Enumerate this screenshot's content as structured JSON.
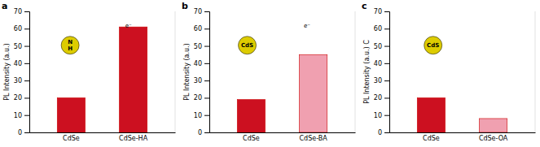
{
  "chart_data": [
    {
      "type": "bar",
      "title": "a",
      "ylabel": "PL Intensity (a.u.)",
      "categories": [
        "CdSe",
        "CdSe-HA"
      ],
      "values": [
        20,
        61
      ],
      "colors": [
        "#cc1020",
        "#cc1020"
      ],
      "ylim": [
        0,
        70
      ],
      "yticks": [
        0,
        10,
        20,
        30,
        40,
        50,
        60,
        70
      ],
      "annotations": [
        "N\nH",
        "e⁻"
      ]
    },
    {
      "type": "bar",
      "title": "b",
      "ylabel": "PL Intensity (a.u.)",
      "categories": [
        "CdSe",
        "CdSe-BA"
      ],
      "values": [
        19,
        45
      ],
      "colors": [
        "#cc1020",
        "#f0a0b0"
      ],
      "ylim": [
        0,
        70
      ],
      "yticks": [
        0,
        10,
        20,
        30,
        40,
        50,
        60,
        70
      ],
      "annotations": [
        "CdS",
        "e⁻"
      ]
    },
    {
      "type": "bar",
      "title": "c",
      "ylabel": "PL Intensity (a.u.) C",
      "categories": [
        "CdSe",
        "CdSe-OA"
      ],
      "values": [
        20,
        8
      ],
      "colors": [
        "#cc1020",
        "#f0a0b0"
      ],
      "ylim": [
        0,
        70
      ],
      "yticks": [
        0,
        10,
        20,
        30,
        40,
        50,
        60,
        70
      ],
      "annotations": [
        "CdS"
      ]
    }
  ]
}
